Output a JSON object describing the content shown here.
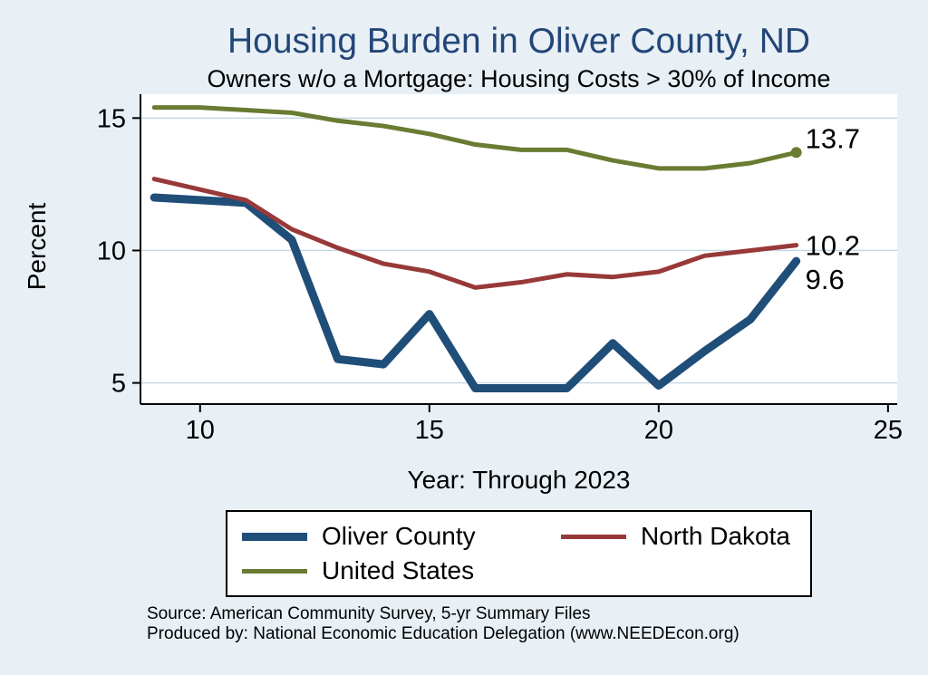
{
  "page": {
    "title": "Housing Burden in Oliver County, ND",
    "subtitle": "Owners w/o a Mortgage: Housing Costs > 30% of Income"
  },
  "colors": {
    "background": "#e8f0f6",
    "title": "#234678",
    "axis": "#000000",
    "plot_background": "#ffffff"
  },
  "chart_data": {
    "type": "line",
    "x": [
      9,
      10,
      11,
      12,
      13,
      14,
      15,
      16,
      17,
      18,
      19,
      20,
      21,
      22,
      23
    ],
    "series": [
      {
        "name": "Oliver County",
        "color": "#1f4e79",
        "width": 9,
        "values": [
          12.0,
          11.9,
          11.8,
          10.4,
          5.9,
          5.7,
          7.6,
          4.8,
          4.8,
          4.8,
          6.5,
          4.9,
          6.2,
          7.4,
          9.6
        ],
        "end_label": "9.6",
        "label_dx": 10,
        "label_dy": 31,
        "end_marker": false
      },
      {
        "name": "North Dakota",
        "color": "#983939",
        "width": 5,
        "values": [
          12.7,
          12.3,
          11.9,
          10.8,
          10.1,
          9.5,
          9.2,
          8.6,
          8.8,
          9.1,
          9.0,
          9.2,
          9.8,
          10.0,
          10.2
        ],
        "end_label": "10.2",
        "label_dx": 10,
        "label_dy": 11,
        "end_marker": false
      },
      {
        "name": "United States",
        "color": "#6a7b32",
        "width": 5,
        "values": [
          15.4,
          15.4,
          15.3,
          15.2,
          14.9,
          14.7,
          14.4,
          14.0,
          13.8,
          13.8,
          13.4,
          13.1,
          13.1,
          13.3,
          13.7
        ],
        "end_label": "13.7",
        "label_dx": 10,
        "label_dy": -5,
        "end_marker": true
      }
    ],
    "xlabel": "Year: Through 2023",
    "ylabel": "Percent",
    "xticks": [
      10,
      15,
      20,
      25
    ],
    "yticks": [
      5,
      10,
      15
    ],
    "xlim": [
      8.7,
      25.2
    ],
    "ylim": [
      4.2,
      15.9
    ],
    "grid": true,
    "grid_color": "#c2d6e3",
    "legend_position": "bottom"
  },
  "footer": {
    "line1": "Source: American Community Survey, 5-yr Summary Files",
    "line2": "Produced by: National Economic Education Delegation (www.NEEDEcon.org)"
  }
}
